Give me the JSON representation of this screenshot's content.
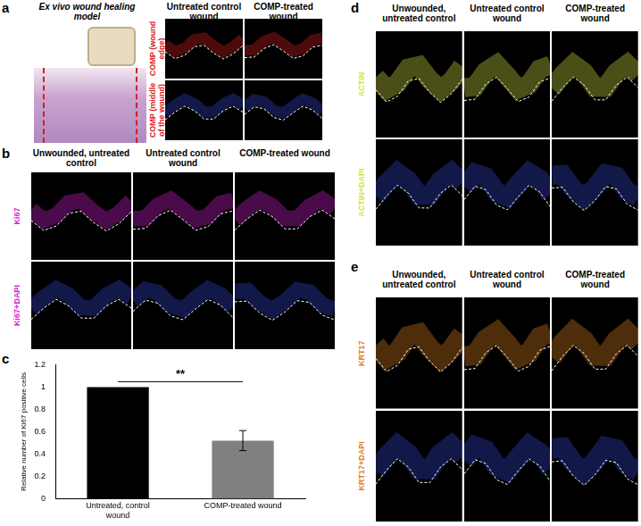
{
  "panels": {
    "a": {
      "panel": "a",
      "title": "Ex vivo wound healing model",
      "columns": [
        "Untreated control wound",
        "COMP-treated wound"
      ],
      "rows": [
        "COMP (wound edge)",
        "COMP (middle of the wound)"
      ]
    },
    "b": {
      "panel": "b",
      "columns": [
        "Unwounded, untreated control",
        "Untreated control wound",
        "COMP-treated wound"
      ],
      "rows": [
        "Ki67",
        "Ki67+DAPI"
      ]
    },
    "d": {
      "panel": "d",
      "columns": [
        "Unwounded, untreated control",
        "Untreated control wound",
        "COMP-treated wound"
      ],
      "rows": [
        "ACTIN",
        "ACTIN+DAPI"
      ]
    },
    "e": {
      "panel": "e",
      "columns": [
        "Unwounded, untreated control",
        "Untreated control wound",
        "COMP-treated wound"
      ],
      "rows": [
        "KRT17",
        "KRT17+DAPI"
      ]
    }
  },
  "chart_data": {
    "panel": "c",
    "type": "bar",
    "categories": [
      "Untreated, control wound",
      "COMP-treated wound"
    ],
    "values": [
      1,
      0.52
    ],
    "errors": [
      null,
      0.09
    ],
    "colors": [
      "#000000",
      "#808080"
    ],
    "y_label": "Relative number of Ki67 positive cells",
    "ylim": [
      0,
      1.2
    ],
    "yticks": [
      0,
      0.2,
      0.4,
      0.6,
      0.8,
      1,
      1.2
    ],
    "annotation": "**",
    "grid": false
  }
}
